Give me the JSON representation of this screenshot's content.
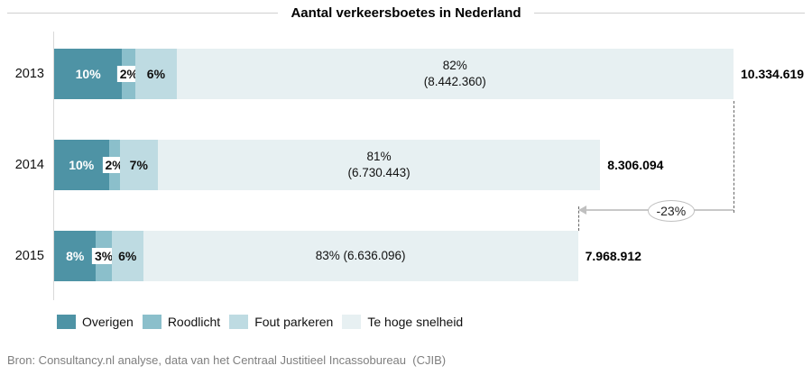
{
  "title": "Aantal verkeersboetes in Nederland",
  "source": "Bron: Consultancy.nl analyse, data van het Centraal Justitieel Incassobureau  (CJIB)",
  "annotation": {
    "label": "-23%"
  },
  "legend": {
    "items": [
      {
        "label": "Overigen"
      },
      {
        "label": "Roodlicht"
      },
      {
        "label": "Fout parkeren"
      },
      {
        "label": "Te hoge snelheid"
      }
    ]
  },
  "chart_data": {
    "type": "bar",
    "orientation": "horizontal",
    "stacked": true,
    "title": "Aantal verkeersboetes in Nederland",
    "categories": [
      "2013",
      "2014",
      "2015"
    ],
    "totals": [
      10334619,
      8306094,
      7968912
    ],
    "series": [
      {
        "name": "Overigen",
        "color": "#4e93a5",
        "values_pct": [
          10,
          10,
          8
        ]
      },
      {
        "name": "Roodlicht",
        "color": "#8bbfcb",
        "values_pct": [
          2,
          2,
          3
        ]
      },
      {
        "name": "Fout parkeren",
        "color": "#bedbe2",
        "values_pct": [
          6,
          7,
          6
        ]
      },
      {
        "name": "Te hoge snelheid",
        "color": "#e7f0f2",
        "values_pct": [
          82,
          81,
          83
        ],
        "values_abs": [
          8442360,
          6730443,
          6636096
        ]
      }
    ],
    "annotation": {
      "text": "-23%",
      "from_category": "2013",
      "to_category": "2015"
    },
    "legend_position": "bottom",
    "grid": false
  },
  "rows": [
    {
      "year": "2013",
      "seg1": "10%",
      "seg2": "2%",
      "seg3": "6%",
      "seg4_main": "82%",
      "seg4_sub": "(8.442.360)",
      "total": "10.334.619"
    },
    {
      "year": "2014",
      "seg1": "10%",
      "seg2": "2%",
      "seg3": "7%",
      "seg4_main": "81%",
      "seg4_sub": "(6.730.443)",
      "total": "8.306.094"
    },
    {
      "year": "2015",
      "seg1": "8%",
      "seg2": "3%",
      "seg3": "6%",
      "seg4_main": "83% (6.636.096)",
      "seg4_sub": "",
      "total": "7.968.912"
    }
  ]
}
